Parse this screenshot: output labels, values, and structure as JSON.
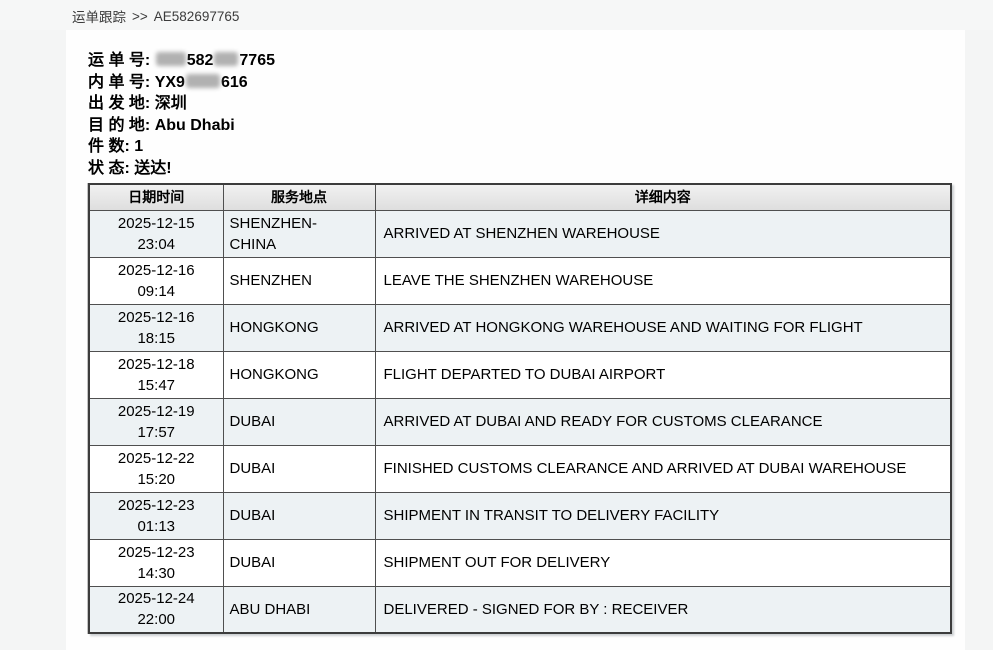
{
  "breadcrumb": {
    "section": "运单跟踪",
    "separator": ">>",
    "waybill_id": "AE582697765"
  },
  "shipment_info": {
    "waybill": {
      "label": "运 单 号:",
      "visible_part1": "582",
      "visible_part2": "7765"
    },
    "inner_no": {
      "label": "内 单 号:",
      "visible_part1": "YX9",
      "visible_part2": "616"
    },
    "origin": {
      "label": "出 发 地:",
      "value": "深圳"
    },
    "destination": {
      "label": "目 的 地:",
      "value": "Abu Dhabi"
    },
    "pieces": {
      "label": "件 数:",
      "value": "1"
    },
    "status": {
      "label": "状 态:",
      "value": "送达!"
    }
  },
  "tracking_table": {
    "headers": [
      "日期时间",
      "服务地点",
      "详细内容"
    ],
    "rows": [
      {
        "date": "2025-12-15",
        "time": "23:04",
        "location": "SHENZHEN-CHINA",
        "detail": "ARRIVED AT SHENZHEN WAREHOUSE"
      },
      {
        "date": "2025-12-16",
        "time": "09:14",
        "location": "SHENZHEN",
        "detail": "LEAVE THE SHENZHEN WAREHOUSE"
      },
      {
        "date": "2025-12-16",
        "time": "18:15",
        "location": "HONGKONG",
        "detail": "ARRIVED AT HONGKONG WAREHOUSE AND WAITING FOR FLIGHT"
      },
      {
        "date": "2025-12-18",
        "time": "15:47",
        "location": "HONGKONG",
        "detail": "FLIGHT DEPARTED TO DUBAI AIRPORT"
      },
      {
        "date": "2025-12-19",
        "time": "17:57",
        "location": "DUBAI",
        "detail": "ARRIVED AT DUBAI AND READY FOR CUSTOMS CLEARANCE"
      },
      {
        "date": "2025-12-22",
        "time": "15:20",
        "location": "DUBAI",
        "detail": "FINISHED CUSTOMS CLEARANCE AND ARRIVED AT DUBAI WAREHOUSE"
      },
      {
        "date": "2025-12-23",
        "time": "01:13",
        "location": "DUBAI",
        "detail": "SHIPMENT IN TRANSIT TO DELIVERY FACILITY"
      },
      {
        "date": "2025-12-23",
        "time": "14:30",
        "location": "DUBAI",
        "detail": "SHIPMENT OUT FOR DELIVERY"
      },
      {
        "date": "2025-12-24",
        "time": "22:00",
        "location": "ABU DHABI",
        "detail": "DELIVERED - SIGNED FOR BY : RECEIVER"
      }
    ]
  },
  "colors": {
    "page_background": "#f4f5f5",
    "panel_background": "#fefefe",
    "table_border": "#3c3c3c",
    "header_background": "#e7e7e7",
    "alt_row_background": "#edf2f4",
    "redaction": "#b1b1b1",
    "text": "#000000"
  }
}
